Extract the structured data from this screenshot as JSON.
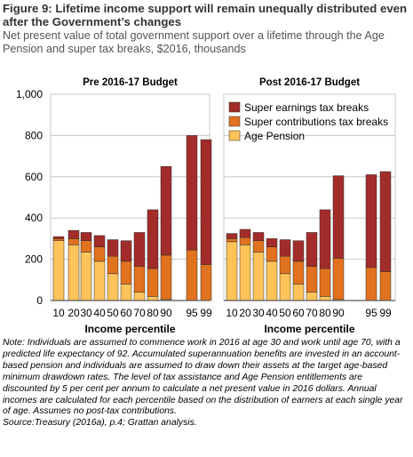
{
  "title": "Figure 9: Lifetime income support will remain unequally distributed even after the Government’s changes",
  "subtitle": "Net present value of total government support over a lifetime through the Age Pension and super tax breaks, $2016, thousands",
  "note": "Note: Individuals are assumed to commence work in 2016 at age 30 and work until age 70, with a predicted life expectancy of 92. Accumulated superannuation benefits are invested in an account-based pension and individuals are assumed to draw down their assets at the target age-based minimum drawdown rates. The level of tax assistance and Age Pension entitlements are discounted by 5 per cent per annum to calculate a net present value in 2016 dollars. Annual incomes are calculated for each percentile based on the distribution of earners at each single year of age. Assumes no post-tax contributions.",
  "source": "Source:Treasury (2016a), p.4; Grattan analysis.",
  "colors": {
    "age_pension": "#FFC35A",
    "super_contributions": "#E1721F",
    "super_earnings": "#A22C29",
    "grid": "#C8C8C8",
    "axis": "#595959"
  },
  "chart_data": [
    {
      "type": "bar",
      "stacked": true,
      "title": "Pre 2016-17 Budget",
      "xlabel": "Income percentile",
      "ylabel": "",
      "ylim": [
        0,
        1000
      ],
      "yticks": [
        "0",
        "200",
        "400",
        "600",
        "800",
        "1,000"
      ],
      "categories": [
        "10",
        "20",
        "30",
        "40",
        "50",
        "60",
        "70",
        "80",
        "90",
        "95",
        "99"
      ],
      "grid": true,
      "series": [
        {
          "name": "Age Pension",
          "values": [
            290,
            270,
            235,
            190,
            130,
            80,
            40,
            20,
            5,
            0,
            0
          ]
        },
        {
          "name": "Super contributions tax breaks",
          "values": [
            10,
            30,
            55,
            70,
            85,
            110,
            125,
            135,
            215,
            245,
            175
          ]
        },
        {
          "name": "Super earnings tax breaks",
          "values": [
            10,
            40,
            40,
            55,
            80,
            100,
            165,
            285,
            430,
            555,
            605
          ]
        }
      ]
    },
    {
      "type": "bar",
      "stacked": true,
      "title": "Post 2016-17 Budget",
      "xlabel": "Income percentile",
      "ylabel": "",
      "ylim": [
        0,
        1000
      ],
      "categories": [
        "10",
        "20",
        "30",
        "40",
        "50",
        "60",
        "70",
        "80",
        "90",
        "95",
        "99"
      ],
      "grid": true,
      "legend_position": "top",
      "series": [
        {
          "name": "Age Pension",
          "values": [
            285,
            270,
            235,
            190,
            130,
            80,
            40,
            20,
            5,
            0,
            0
          ]
        },
        {
          "name": "Super contributions tax breaks",
          "values": [
            15,
            35,
            55,
            70,
            85,
            110,
            125,
            135,
            200,
            160,
            140
          ]
        },
        {
          "name": "Super earnings tax breaks",
          "values": [
            25,
            40,
            40,
            40,
            80,
            100,
            165,
            285,
            400,
            450,
            485
          ]
        }
      ]
    }
  ]
}
